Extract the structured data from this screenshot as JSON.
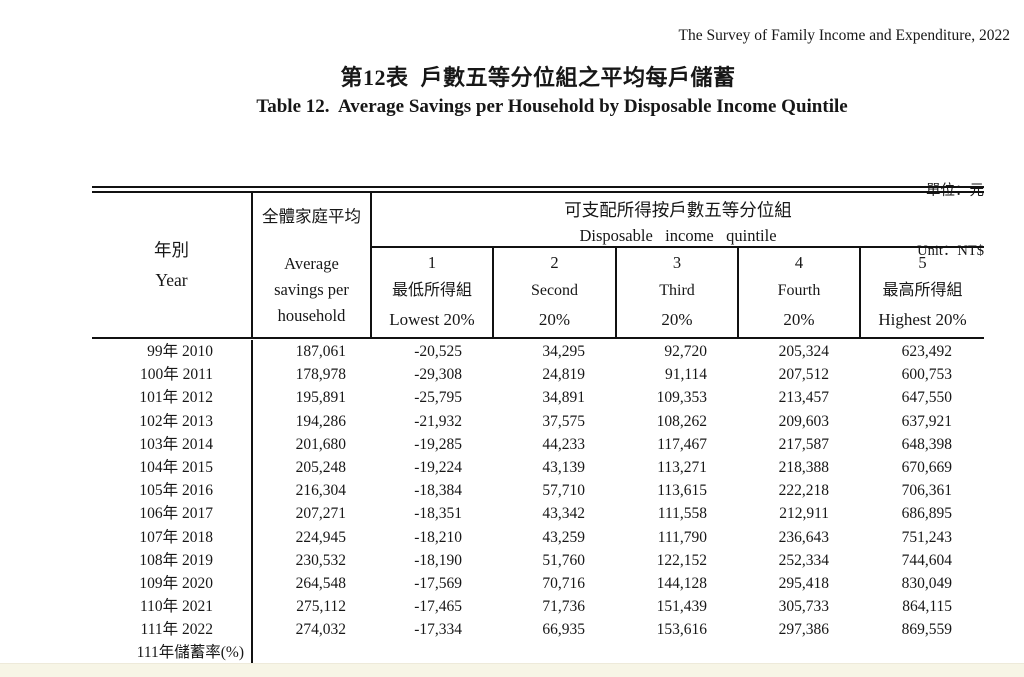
{
  "page": {
    "survey_header": "The Survey of Family Income and Expenditure, 2022",
    "title_zh": "第12表  戶數五等分位組之平均每戶儲蓄",
    "title_en": "Table 12.  Average Savings per Household by Disposable Income Quintile",
    "unit_zh": "單位：元",
    "unit_en": "Unit：NT$"
  },
  "table": {
    "year_header": {
      "zh": "年別",
      "en": "Year"
    },
    "avg_header": {
      "zh": "全體家庭平均",
      "en_line1": "Average",
      "en_line2": "savings per",
      "en_line3": "household"
    },
    "group_header": {
      "zh": "可支配所得按戶數五等分位組",
      "en": "Disposable   income   quintile"
    },
    "quintiles": [
      {
        "lines": [
          "1",
          "最低所得組",
          "Lowest 20%"
        ]
      },
      {
        "lines": [
          "2",
          "Second",
          "20%"
        ]
      },
      {
        "lines": [
          "3",
          "Third",
          "20%"
        ]
      },
      {
        "lines": [
          "4",
          "Fourth",
          "20%"
        ]
      },
      {
        "lines": [
          "5",
          "最高所得組",
          "Highest 20%"
        ]
      }
    ],
    "rows": [
      {
        "label": "99年 2010",
        "values": [
          "187,061",
          "-20,525",
          "34,295",
          "92,720",
          "205,324",
          "623,492"
        ]
      },
      {
        "label": "100年 2011",
        "values": [
          "178,978",
          "-29,308",
          "24,819",
          "91,114",
          "207,512",
          "600,753"
        ]
      },
      {
        "label": "101年 2012",
        "values": [
          "195,891",
          "-25,795",
          "34,891",
          "109,353",
          "213,457",
          "647,550"
        ]
      },
      {
        "label": "102年 2013",
        "values": [
          "194,286",
          "-21,932",
          "37,575",
          "108,262",
          "209,603",
          "637,921"
        ]
      },
      {
        "label": "103年 2014",
        "values": [
          "201,680",
          "-19,285",
          "44,233",
          "117,467",
          "217,587",
          "648,398"
        ]
      },
      {
        "label": "104年 2015",
        "values": [
          "205,248",
          "-19,224",
          "43,139",
          "113,271",
          "218,388",
          "670,669"
        ]
      },
      {
        "label": "105年 2016",
        "values": [
          "216,304",
          "-18,384",
          "57,710",
          "113,615",
          "222,218",
          "706,361"
        ]
      },
      {
        "label": "106年 2017",
        "values": [
          "207,271",
          "-18,351",
          "43,342",
          "111,558",
          "212,911",
          "686,895"
        ]
      },
      {
        "label": "107年 2018",
        "values": [
          "224,945",
          "-18,210",
          "43,259",
          "111,790",
          "236,643",
          "751,243"
        ]
      },
      {
        "label": "108年 2019",
        "values": [
          "230,532",
          "-18,190",
          "51,760",
          "122,152",
          "252,334",
          "744,604"
        ]
      },
      {
        "label": "109年 2020",
        "values": [
          "264,548",
          "-17,569",
          "70,716",
          "144,128",
          "295,418",
          "830,049"
        ]
      },
      {
        "label": "110年 2021",
        "values": [
          "275,112",
          "-17,465",
          "71,736",
          "151,439",
          "305,733",
          "864,115"
        ]
      },
      {
        "label": "111年 2022",
        "values": [
          "274,032",
          "-17,334",
          "66,935",
          "153,616",
          "297,386",
          "869,559"
        ]
      },
      {
        "label": "111年儲蓄率(%)",
        "values": [
          "",
          "",
          "",
          "",
          "",
          ""
        ],
        "is_rate": true
      }
    ]
  }
}
